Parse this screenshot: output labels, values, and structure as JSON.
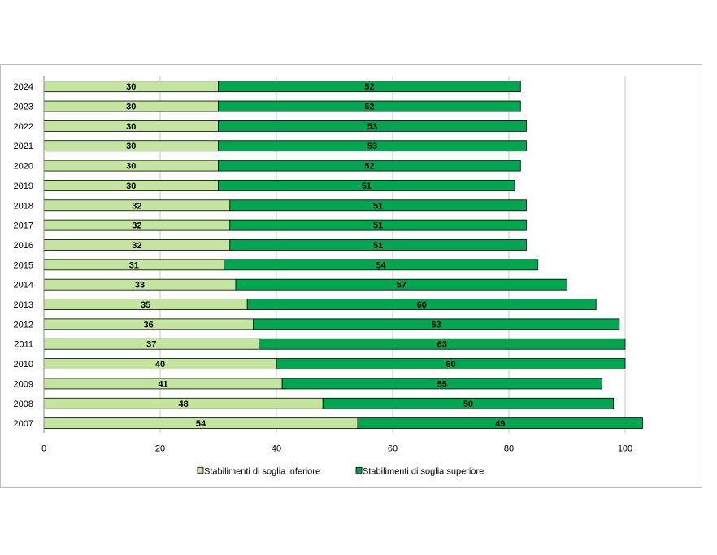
{
  "chart_data": {
    "type": "bar",
    "orientation": "horizontal",
    "stacked": true,
    "categories": [
      "2024",
      "2023",
      "2022",
      "2021",
      "2020",
      "2019",
      "2018",
      "2017",
      "2016",
      "2015",
      "2014",
      "2013",
      "2012",
      "2011",
      "2010",
      "2009",
      "2008",
      "2007"
    ],
    "series": [
      {
        "name": "Stabilimenti di soglia inferiore",
        "color": "#c4e59f",
        "values": [
          30,
          30,
          30,
          30,
          30,
          30,
          32,
          32,
          32,
          31,
          33,
          35,
          36,
          37,
          40,
          41,
          48,
          54
        ]
      },
      {
        "name": "Stabilimenti di soglia superiore",
        "color": "#00a650",
        "values": [
          52,
          52,
          53,
          53,
          52,
          51,
          51,
          51,
          51,
          54,
          57,
          60,
          63,
          63,
          60,
          55,
          50,
          49
        ]
      }
    ],
    "xlim": [
      0,
      100
    ],
    "xticks": [
      0,
      20,
      40,
      60,
      80,
      100
    ],
    "grid": true,
    "legend_position": "bottom",
    "title": "",
    "xlabel": "",
    "ylabel": ""
  }
}
